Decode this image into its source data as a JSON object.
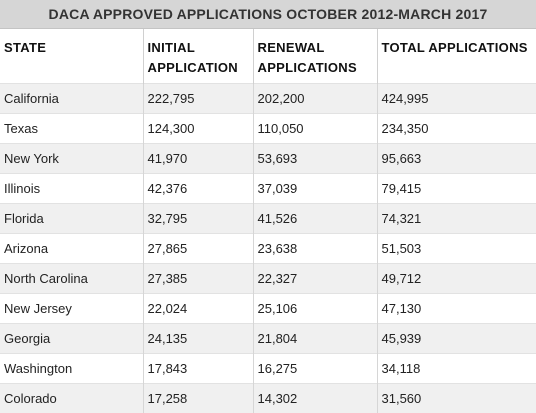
{
  "title": "DACA APPROVED APPLICATIONS OCTOBER 2012-MARCH 2017",
  "columns": {
    "state": "STATE",
    "initial_line1": "INITIAL",
    "initial_line2": "APPLICATION",
    "renewal_line1": "RENEWAL",
    "renewal_line2": "APPLICATIONS",
    "total": "TOTAL APPLICATIONS"
  },
  "rows": [
    {
      "state": "California",
      "initial": "222,795",
      "renewal": "202,200",
      "total": "424,995"
    },
    {
      "state": "Texas",
      "initial": "124,300",
      "renewal": "110,050",
      "total": "234,350"
    },
    {
      "state": "New York",
      "initial": "41,970",
      "renewal": "53,693",
      "total": "95,663"
    },
    {
      "state": "Illinois",
      "initial": "42,376",
      "renewal": "37,039",
      "total": "79,415"
    },
    {
      "state": "Florida",
      "initial": "32,795",
      "renewal": "41,526",
      "total": "74,321"
    },
    {
      "state": "Arizona",
      "initial": "27,865",
      "renewal": "23,638",
      "total": "51,503"
    },
    {
      "state": "North Carolina",
      "initial": "27,385",
      "renewal": "22,327",
      "total": "49,712"
    },
    {
      "state": "New Jersey",
      "initial": "22,024",
      "renewal": "25,106",
      "total": "47,130"
    },
    {
      "state": "Georgia",
      "initial": "24,135",
      "renewal": "21,804",
      "total": "45,939"
    },
    {
      "state": "Washington",
      "initial": "17,843",
      "renewal": "16,275",
      "total": "34,118"
    },
    {
      "state": "Colorado",
      "initial": "17,258",
      "renewal": "14,302",
      "total": "31,560"
    }
  ]
}
